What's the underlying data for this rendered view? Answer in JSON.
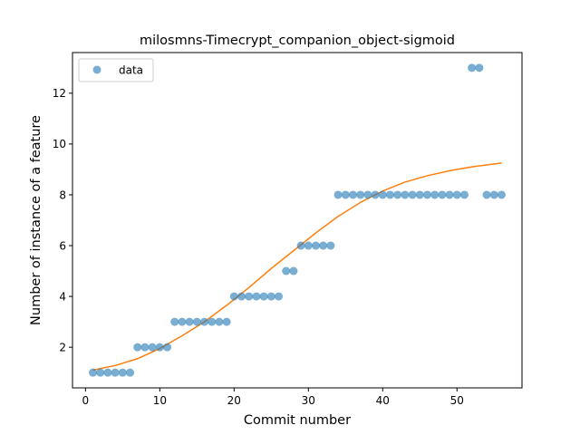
{
  "chart_data": {
    "type": "scatter",
    "title": "milosmns-Timecrypt_companion_object-sigmoid",
    "xlabel": "Commit number",
    "ylabel": "Number of instance of a feature",
    "xlim": [
      -1.75,
      58.75
    ],
    "ylim": [
      0.4,
      13.6
    ],
    "xticks": [
      0,
      10,
      20,
      30,
      40,
      50
    ],
    "yticks": [
      2,
      4,
      6,
      8,
      10,
      12
    ],
    "grid": false,
    "legend": {
      "position": "top-left",
      "entries": [
        "data"
      ]
    },
    "series": [
      {
        "name": "data",
        "kind": "scatter",
        "color": "#1f77b4",
        "x": [
          1,
          2,
          3,
          4,
          5,
          6,
          7,
          8,
          9,
          10,
          11,
          12,
          13,
          14,
          15,
          16,
          17,
          18,
          19,
          20,
          21,
          22,
          23,
          24,
          25,
          26,
          27,
          28,
          29,
          30,
          31,
          32,
          33,
          34,
          35,
          36,
          37,
          38,
          39,
          40,
          41,
          42,
          43,
          44,
          45,
          46,
          47,
          48,
          49,
          50,
          51,
          52,
          53,
          54,
          55,
          56
        ],
        "y": [
          1,
          1,
          1,
          1,
          1,
          1,
          2,
          2,
          2,
          2,
          2,
          3,
          3,
          3,
          3,
          3,
          3,
          3,
          3,
          4,
          4,
          4,
          4,
          4,
          4,
          4,
          5,
          5,
          6,
          6,
          6,
          6,
          6,
          8,
          8,
          8,
          8,
          8,
          8,
          8,
          8,
          8,
          8,
          8,
          8,
          8,
          8,
          8,
          8,
          8,
          8,
          13,
          13,
          8,
          8,
          8
        ]
      },
      {
        "kind": "line",
        "color": "#ff7f0e",
        "x": [
          1,
          4,
          7,
          10,
          13,
          16,
          19,
          22,
          25,
          28,
          31,
          34,
          37,
          40,
          43,
          46,
          49,
          52,
          56
        ],
        "y": [
          1.1,
          1.28,
          1.55,
          1.95,
          2.45,
          3.0,
          3.65,
          4.35,
          5.1,
          5.8,
          6.5,
          7.15,
          7.7,
          8.15,
          8.5,
          8.75,
          8.95,
          9.1,
          9.25
        ]
      }
    ]
  }
}
